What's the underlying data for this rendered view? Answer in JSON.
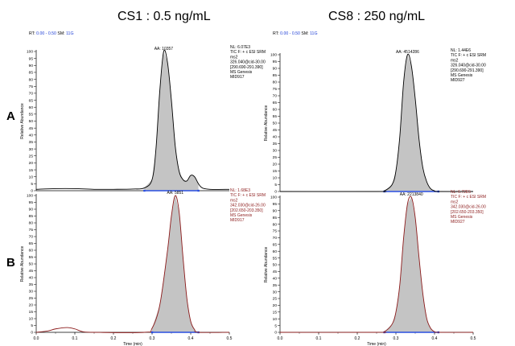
{
  "column_titles": [
    "CS1 : 0.5 ng/mL",
    "CS8 : 250 ng/mL"
  ],
  "row_labels": [
    "A",
    "B"
  ],
  "colors": {
    "black_trace": "#000000",
    "red_trace": "#8b1a1a",
    "peak_fill": "#c4c4c4",
    "rt_blue": "#1f3fd6",
    "baseline_blue": "#2a4fe0"
  },
  "chart_data": [
    {
      "type": "area",
      "panel": "A-left",
      "header": "RT: 0.00 - 0.50  SM: 11G",
      "ylabel": "Relative Abundance",
      "xlabel": "",
      "xlim": [
        0.0,
        0.5
      ],
      "ylim": [
        0,
        100
      ],
      "yticks": [
        0,
        5,
        10,
        15,
        20,
        25,
        30,
        35,
        40,
        45,
        50,
        55,
        60,
        65,
        70,
        75,
        80,
        85,
        90,
        95,
        100
      ],
      "xticks": [],
      "peak_label": "AA: 10357",
      "peak_rt": 0.33,
      "peak_range": [
        0.28,
        0.42
      ],
      "info": [
        "NL: 6.07E3",
        "TIC F: + c ESI SRM",
        "ms2",
        "326.040@cid-30.00",
        "[290.690-291.390]",
        "MS  Genesis",
        "MID917"
      ],
      "trace": "black",
      "points": [
        [
          0.0,
          1
        ],
        [
          0.05,
          1.5
        ],
        [
          0.1,
          1.5
        ],
        [
          0.15,
          1
        ],
        [
          0.2,
          1
        ],
        [
          0.25,
          1.2
        ],
        [
          0.28,
          2
        ],
        [
          0.3,
          8
        ],
        [
          0.31,
          30
        ],
        [
          0.32,
          72
        ],
        [
          0.33,
          100
        ],
        [
          0.34,
          92
        ],
        [
          0.35,
          65
        ],
        [
          0.36,
          32
        ],
        [
          0.37,
          14
        ],
        [
          0.38,
          8
        ],
        [
          0.39,
          7
        ],
        [
          0.4,
          11
        ],
        [
          0.41,
          10
        ],
        [
          0.42,
          5
        ],
        [
          0.43,
          2
        ],
        [
          0.45,
          1
        ],
        [
          0.5,
          1
        ]
      ]
    },
    {
      "type": "area",
      "panel": "A-right",
      "header": "RT: 0.00 - 0.50  SM: 11G",
      "ylabel": "Relative Abundance",
      "xlabel": "",
      "xlim": [
        0.0,
        0.5
      ],
      "ylim": [
        0,
        100
      ],
      "yticks": [
        0,
        5,
        10,
        15,
        20,
        25,
        30,
        35,
        40,
        45,
        50,
        55,
        60,
        65,
        70,
        75,
        80,
        85,
        90,
        95,
        100
      ],
      "xticks": [],
      "peak_label": "AA: 4514286",
      "peak_rt": 0.33,
      "peak_range": [
        0.27,
        0.41
      ],
      "info": [
        "NL: 1.44E6",
        "TIC F: + c ESI SRM",
        "ms2",
        "326.040@cid-30.00",
        "[290.690-291.390]",
        "MS  Genesis",
        "MID927"
      ],
      "trace": "black",
      "points": [
        [
          0.0,
          0
        ],
        [
          0.25,
          0
        ],
        [
          0.27,
          0.5
        ],
        [
          0.29,
          5
        ],
        [
          0.3,
          15
        ],
        [
          0.31,
          40
        ],
        [
          0.32,
          80
        ],
        [
          0.33,
          100
        ],
        [
          0.34,
          92
        ],
        [
          0.35,
          68
        ],
        [
          0.36,
          38
        ],
        [
          0.37,
          17
        ],
        [
          0.38,
          7
        ],
        [
          0.39,
          2
        ],
        [
          0.4,
          0.5
        ],
        [
          0.41,
          0
        ],
        [
          0.5,
          0
        ]
      ]
    },
    {
      "type": "area",
      "panel": "B-left",
      "header": "",
      "ylabel": "Relative Abundance",
      "xlabel": "Time (min)",
      "xlim": [
        0.0,
        0.5
      ],
      "ylim": [
        0,
        100
      ],
      "yticks": [
        0,
        5,
        10,
        15,
        20,
        25,
        30,
        35,
        40,
        45,
        50,
        55,
        60,
        65,
        70,
        75,
        80,
        85,
        90,
        95,
        100
      ],
      "xticks": [
        "0.0",
        "0.1",
        "0.2",
        "0.3",
        "0.4",
        "0.5"
      ],
      "peak_label": "AA: 5851",
      "peak_rt": 0.36,
      "peak_range": [
        0.3,
        0.42
      ],
      "info": [
        "NL: 1.68E3",
        "TIC F: + c ESI SRM",
        "ms2",
        "342.030@cid-26.00",
        "[202.650-203.350]",
        "MS  Genesis",
        "MID917"
      ],
      "trace": "red",
      "points": [
        [
          0.0,
          0
        ],
        [
          0.03,
          1
        ],
        [
          0.05,
          2.5
        ],
        [
          0.08,
          3.5
        ],
        [
          0.1,
          2.5
        ],
        [
          0.12,
          0.5
        ],
        [
          0.15,
          0
        ],
        [
          0.28,
          0
        ],
        [
          0.3,
          3
        ],
        [
          0.32,
          20
        ],
        [
          0.34,
          60
        ],
        [
          0.35,
          85
        ],
        [
          0.36,
          100
        ],
        [
          0.37,
          88
        ],
        [
          0.38,
          55
        ],
        [
          0.39,
          25
        ],
        [
          0.4,
          8
        ],
        [
          0.41,
          2
        ],
        [
          0.42,
          0
        ],
        [
          0.5,
          0
        ]
      ]
    },
    {
      "type": "area",
      "panel": "B-right",
      "header": "",
      "ylabel": "Relative Abundance",
      "xlabel": "Time (min)",
      "xlim": [
        0.0,
        0.5
      ],
      "ylim": [
        0,
        100
      ],
      "yticks": [
        0,
        5,
        10,
        15,
        20,
        25,
        30,
        35,
        40,
        45,
        50,
        55,
        60,
        65,
        70,
        75,
        80,
        85,
        90,
        95,
        100
      ],
      "xticks": [
        "0.0",
        "0.1",
        "0.2",
        "0.3",
        "0.4",
        "0.5"
      ],
      "peak_label": "AA: 2213840",
      "peak_rt": 0.34,
      "peak_range": [
        0.27,
        0.41
      ],
      "info": [
        "NL: 6.72E5",
        "TIC F: + c ESI SRM",
        "ms2",
        "342.030@cid-26.00",
        "[202.650-203.350]",
        "MS  Genesis",
        "MID927"
      ],
      "trace": "red",
      "points": [
        [
          0.0,
          0
        ],
        [
          0.25,
          0
        ],
        [
          0.27,
          0.5
        ],
        [
          0.29,
          6
        ],
        [
          0.3,
          15
        ],
        [
          0.31,
          35
        ],
        [
          0.32,
          70
        ],
        [
          0.33,
          95
        ],
        [
          0.34,
          100
        ],
        [
          0.35,
          85
        ],
        [
          0.36,
          55
        ],
        [
          0.37,
          28
        ],
        [
          0.38,
          10
        ],
        [
          0.39,
          3
        ],
        [
          0.4,
          0.5
        ],
        [
          0.41,
          0
        ],
        [
          0.5,
          0
        ]
      ]
    }
  ]
}
